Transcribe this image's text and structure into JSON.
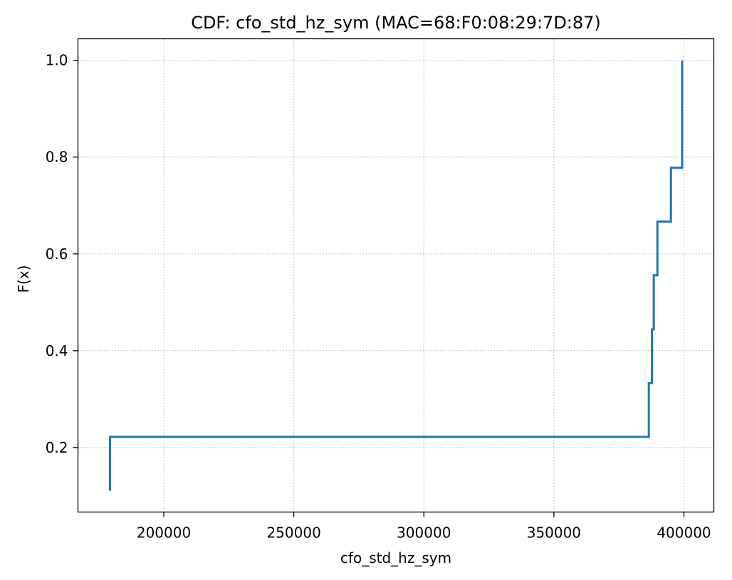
{
  "chart_data": {
    "type": "line",
    "drawstyle": "steps-post",
    "title": "CDF: cfo_std_hz_sym (MAC=68:F0:08:29:7D:87)",
    "xlabel": "cfo_std_hz_sym",
    "ylabel": "F(x)",
    "xlim": [
      167000,
      411500
    ],
    "ylim": [
      0.0667,
      1.0444
    ],
    "xticks": [
      200000,
      250000,
      300000,
      350000,
      400000
    ],
    "yticks": [
      0.2,
      0.4,
      0.6,
      0.8,
      1.0
    ],
    "xtick_labels": [
      "200000",
      "250000",
      "300000",
      "350000",
      "400000"
    ],
    "ytick_labels": [
      "0.2",
      "0.4",
      "0.6",
      "0.8",
      "1.0"
    ],
    "grid": true,
    "line_color": "#1f77b4",
    "series": [
      {
        "x": [
          179300,
          179300,
          386500,
          386500,
          387700,
          387700,
          388400,
          388400,
          389800,
          389800,
          395000,
          395000,
          399300,
          399300
        ],
        "y": [
          0.111,
          0.222,
          0.222,
          0.333,
          0.333,
          0.444,
          0.444,
          0.556,
          0.556,
          0.667,
          0.667,
          0.778,
          0.778,
          1.0
        ]
      }
    ]
  }
}
